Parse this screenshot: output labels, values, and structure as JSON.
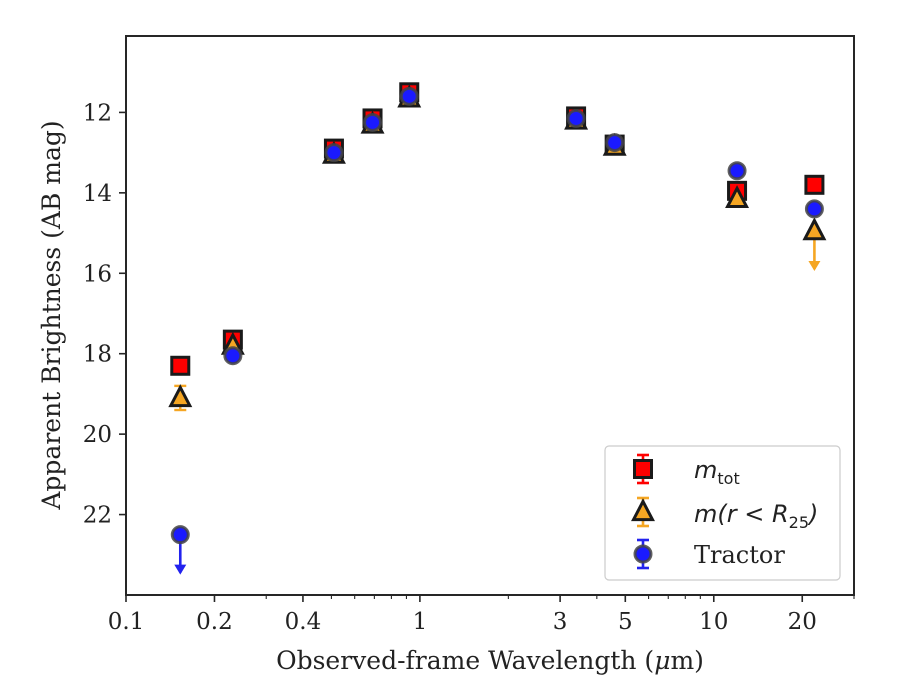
{
  "chart_data": {
    "type": "scatter",
    "xscale": "log",
    "yinverted": true,
    "xlim": [
      0.1,
      30
    ],
    "ylim": [
      24.0,
      10.1
    ],
    "xlabel": "Observed-frame Wavelength (μm)",
    "xlabel_parts": {
      "prefix": "Observed-frame Wavelength (",
      "mu": "μ",
      "suffix": "m)"
    },
    "ylabel": "Apparent Brightness (AB mag)",
    "xticks": [
      {
        "value": 0.1,
        "label": "0.1"
      },
      {
        "value": 0.2,
        "label": "0.2"
      },
      {
        "value": 0.4,
        "label": "0.4"
      },
      {
        "value": 1,
        "label": "1"
      },
      {
        "value": 3,
        "label": "3"
      },
      {
        "value": 5,
        "label": "5"
      },
      {
        "value": 10,
        "label": "10"
      },
      {
        "value": 20,
        "label": "20"
      }
    ],
    "yticks": [
      {
        "value": 12,
        "label": "12"
      },
      {
        "value": 14,
        "label": "14"
      },
      {
        "value": 16,
        "label": "16"
      },
      {
        "value": 18,
        "label": "18"
      },
      {
        "value": 20,
        "label": "20"
      },
      {
        "value": 22,
        "label": "22"
      }
    ],
    "grid": false,
    "legend_position": "lower-right",
    "series": [
      {
        "name": "m_tot",
        "legend_main": "m",
        "legend_sub": "tot",
        "marker": "square",
        "face_color": "#ff0000",
        "edge_color": "#1a1a1a",
        "err_color": "#ff0000",
        "points": [
          {
            "x": 0.153,
            "y": 18.3
          },
          {
            "x": 0.231,
            "y": 17.65
          },
          {
            "x": 0.51,
            "y": 12.9
          },
          {
            "x": 0.69,
            "y": 12.15
          },
          {
            "x": 0.92,
            "y": 11.5
          },
          {
            "x": 3.4,
            "y": 12.1
          },
          {
            "x": 4.6,
            "y": 12.8
          },
          {
            "x": 12.0,
            "y": 13.95
          },
          {
            "x": 22.0,
            "y": 13.8
          }
        ]
      },
      {
        "name": "m(r < R_25)",
        "legend_main": "m(r < R",
        "legend_sub": "25",
        "legend_tail": ")",
        "marker": "triangle",
        "face_color": "#f5a623",
        "edge_color": "#1a1a1a",
        "err_color": "#f5a623",
        "points": [
          {
            "x": 0.153,
            "y": 19.1,
            "err": 0.3
          },
          {
            "x": 0.231,
            "y": 17.8
          },
          {
            "x": 0.51,
            "y": 13.05
          },
          {
            "x": 0.69,
            "y": 12.3
          },
          {
            "x": 0.92,
            "y": 11.65
          },
          {
            "x": 3.4,
            "y": 12.2
          },
          {
            "x": 4.6,
            "y": 12.85
          },
          {
            "x": 12.0,
            "y": 14.15
          },
          {
            "x": 22.0,
            "y": 14.95,
            "upper_limit": true
          }
        ]
      },
      {
        "name": "Tractor",
        "legend_main": "Tractor",
        "marker": "circle",
        "face_color": "#1a1aff",
        "edge_color": "#444444",
        "err_color": "#2222ee",
        "points": [
          {
            "x": 0.153,
            "y": 22.5,
            "upper_limit": true
          },
          {
            "x": 0.231,
            "y": 18.05
          },
          {
            "x": 0.51,
            "y": 13.0
          },
          {
            "x": 0.69,
            "y": 12.25
          },
          {
            "x": 0.92,
            "y": 11.6
          },
          {
            "x": 3.4,
            "y": 12.15
          },
          {
            "x": 4.6,
            "y": 12.75
          },
          {
            "x": 12.0,
            "y": 13.45
          },
          {
            "x": 22.0,
            "y": 14.4
          }
        ]
      }
    ]
  }
}
